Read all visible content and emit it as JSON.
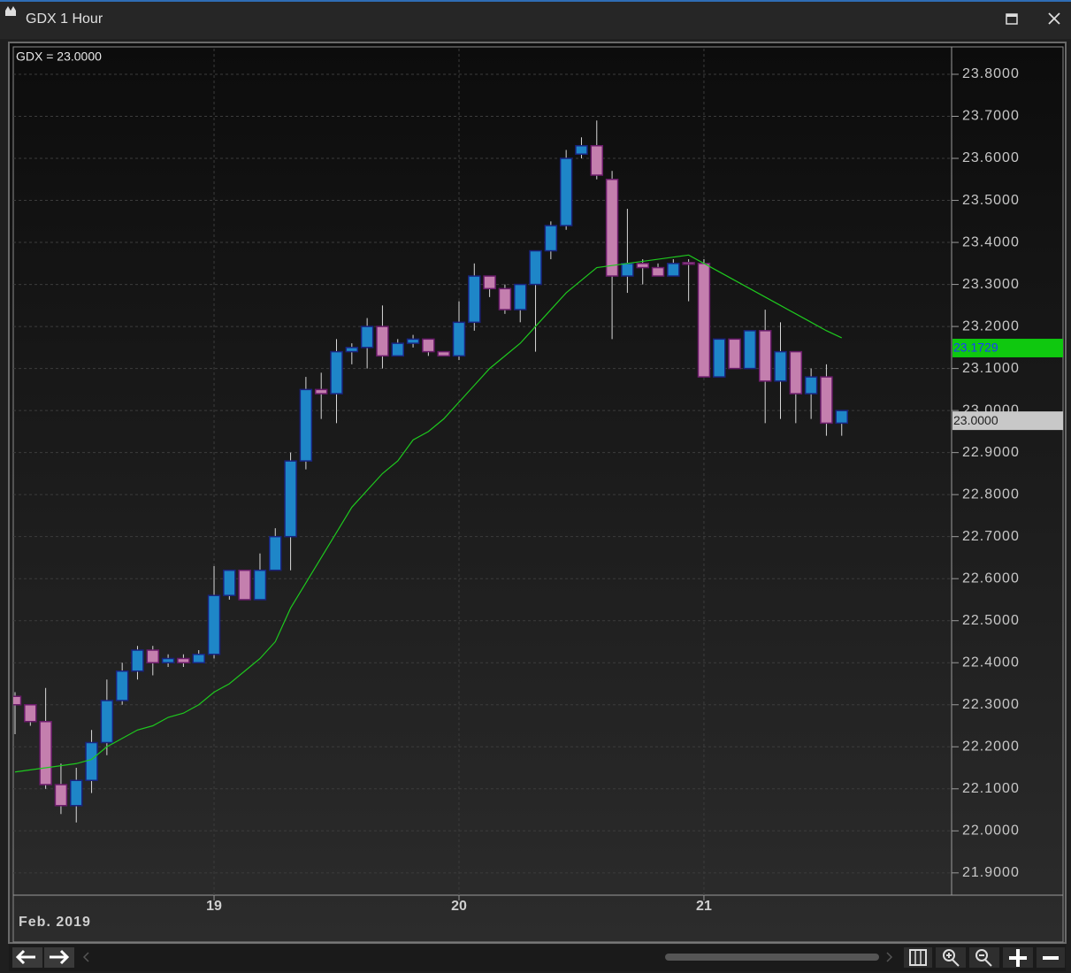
{
  "window": {
    "title": "GDX 1 Hour"
  },
  "chart_data": {
    "type": "candlestick",
    "legend_text": "GDX = 23.0000",
    "x_label": "Feb. 2019",
    "categories": [
      null,
      null,
      null,
      null,
      null,
      null,
      null,
      null,
      null,
      null,
      null,
      null,
      null,
      "19",
      null,
      null,
      null,
      null,
      null,
      null,
      null,
      null,
      null,
      null,
      null,
      null,
      null,
      null,
      null,
      "20",
      null,
      null,
      null,
      null,
      null,
      null,
      null,
      null,
      null,
      null,
      null,
      null,
      null,
      null,
      null,
      "21",
      null,
      null,
      null,
      null,
      null,
      null,
      null,
      null,
      null
    ],
    "open": [
      22.32,
      22.3,
      22.26,
      22.11,
      22.06,
      22.12,
      22.21,
      22.31,
      22.38,
      22.43,
      22.4,
      22.41,
      22.4,
      22.42,
      22.56,
      22.62,
      22.55,
      22.62,
      22.7,
      22.88,
      23.05,
      23.04,
      23.14,
      23.15,
      23.2,
      23.13,
      23.16,
      23.17,
      23.14,
      23.13,
      23.21,
      23.32,
      23.29,
      23.24,
      23.3,
      23.38,
      23.44,
      23.61,
      23.63,
      23.55,
      23.32,
      23.35,
      23.34,
      23.32,
      23.352,
      23.35,
      23.08,
      23.17,
      23.1,
      23.19,
      23.07,
      23.14,
      23.04,
      23.08,
      22.97
    ],
    "high": [
      22.33,
      22.3,
      22.34,
      22.16,
      22.15,
      22.24,
      22.36,
      22.4,
      22.44,
      22.44,
      22.42,
      22.42,
      22.43,
      22.63,
      22.62,
      22.62,
      22.66,
      22.72,
      22.9,
      23.08,
      23.09,
      23.17,
      23.16,
      23.22,
      23.25,
      23.17,
      23.18,
      23.17,
      23.14,
      23.26,
      23.35,
      23.32,
      23.3,
      23.3,
      23.38,
      23.45,
      23.62,
      23.65,
      23.69,
      23.57,
      23.48,
      23.36,
      23.35,
      23.36,
      23.36,
      23.36,
      23.17,
      23.17,
      23.19,
      23.24,
      23.21,
      23.14,
      23.1,
      23.11,
      23.0
    ],
    "low": [
      22.23,
      22.25,
      22.1,
      22.04,
      22.02,
      22.09,
      22.18,
      22.3,
      22.36,
      22.37,
      22.39,
      22.39,
      22.4,
      22.41,
      22.55,
      22.55,
      22.55,
      22.62,
      22.62,
      22.86,
      22.98,
      22.97,
      23.11,
      23.1,
      23.1,
      23.13,
      23.15,
      23.13,
      23.13,
      23.12,
      23.19,
      23.27,
      23.23,
      23.21,
      23.14,
      23.36,
      23.43,
      23.6,
      23.55,
      23.17,
      23.28,
      23.3,
      23.32,
      23.32,
      23.26,
      23.08,
      23.08,
      23.1,
      23.1,
      22.97,
      22.98,
      22.97,
      22.98,
      22.94,
      22.94
    ],
    "close": [
      22.3,
      22.26,
      22.11,
      22.06,
      22.12,
      22.21,
      22.31,
      22.38,
      22.43,
      22.4,
      22.41,
      22.4,
      22.42,
      22.56,
      22.62,
      22.55,
      22.62,
      22.7,
      22.88,
      23.05,
      23.04,
      23.14,
      23.15,
      23.2,
      23.13,
      23.16,
      23.17,
      23.14,
      23.13,
      23.21,
      23.32,
      23.29,
      23.24,
      23.3,
      23.38,
      23.44,
      23.6,
      23.63,
      23.56,
      23.32,
      23.35,
      23.34,
      23.32,
      23.35,
      23.348,
      23.08,
      23.17,
      23.1,
      23.19,
      23.07,
      23.14,
      23.04,
      23.08,
      22.97,
      23.0
    ],
    "up_color": "#1e86c8",
    "down_color": "#c47fae",
    "ma": {
      "color": "#1ec81e",
      "values": [
        22.14,
        22.145,
        22.15,
        22.155,
        22.16,
        22.17,
        22.2,
        22.22,
        22.24,
        22.25,
        22.27,
        22.28,
        22.3,
        22.33,
        22.35,
        22.38,
        22.41,
        22.45,
        22.53,
        22.59,
        22.65,
        22.71,
        22.77,
        22.81,
        22.85,
        22.88,
        22.93,
        22.95,
        22.98,
        23.02,
        23.06,
        23.1,
        23.13,
        23.16,
        23.2,
        23.24,
        23.28,
        23.31,
        23.34,
        23.345,
        23.35,
        23.355,
        23.36,
        23.365,
        23.37,
        23.35,
        23.33,
        23.31,
        23.29,
        23.27,
        23.25,
        23.23,
        23.21,
        23.19,
        23.1729
      ]
    },
    "price_tags": [
      {
        "value": 23.1729,
        "label": "23.1729",
        "color": "#0fc80f"
      },
      {
        "value": 23.0,
        "label": "23.0000",
        "color": "#c8c8c8"
      }
    ],
    "ylim": [
      21.847,
      23.861
    ],
    "yticks": [
      {
        "value": 21.9,
        "label": "21.9000"
      },
      {
        "value": 22.0,
        "label": "22.0000"
      },
      {
        "value": 22.1,
        "label": "22.1000"
      },
      {
        "value": 22.2,
        "label": "22.2000"
      },
      {
        "value": 22.3,
        "label": "22.3000"
      },
      {
        "value": 22.4,
        "label": "22.4000"
      },
      {
        "value": 22.5,
        "label": "22.5000"
      },
      {
        "value": 22.6,
        "label": "22.6000"
      },
      {
        "value": 22.7,
        "label": "22.7000"
      },
      {
        "value": 22.8,
        "label": "22.8000"
      },
      {
        "value": 22.9,
        "label": "22.9000"
      },
      {
        "value": 23.0,
        "label": "23.0000"
      },
      {
        "value": 23.1,
        "label": "23.1000"
      },
      {
        "value": 23.2,
        "label": "23.2000"
      },
      {
        "value": 23.3,
        "label": "23.3000"
      },
      {
        "value": 23.4,
        "label": "23.4000"
      },
      {
        "value": 23.5,
        "label": "23.5000"
      },
      {
        "value": 23.6,
        "label": "23.6000"
      },
      {
        "value": 23.7,
        "label": "23.7000"
      },
      {
        "value": 23.8,
        "label": "23.8000"
      }
    ],
    "grid": true
  }
}
